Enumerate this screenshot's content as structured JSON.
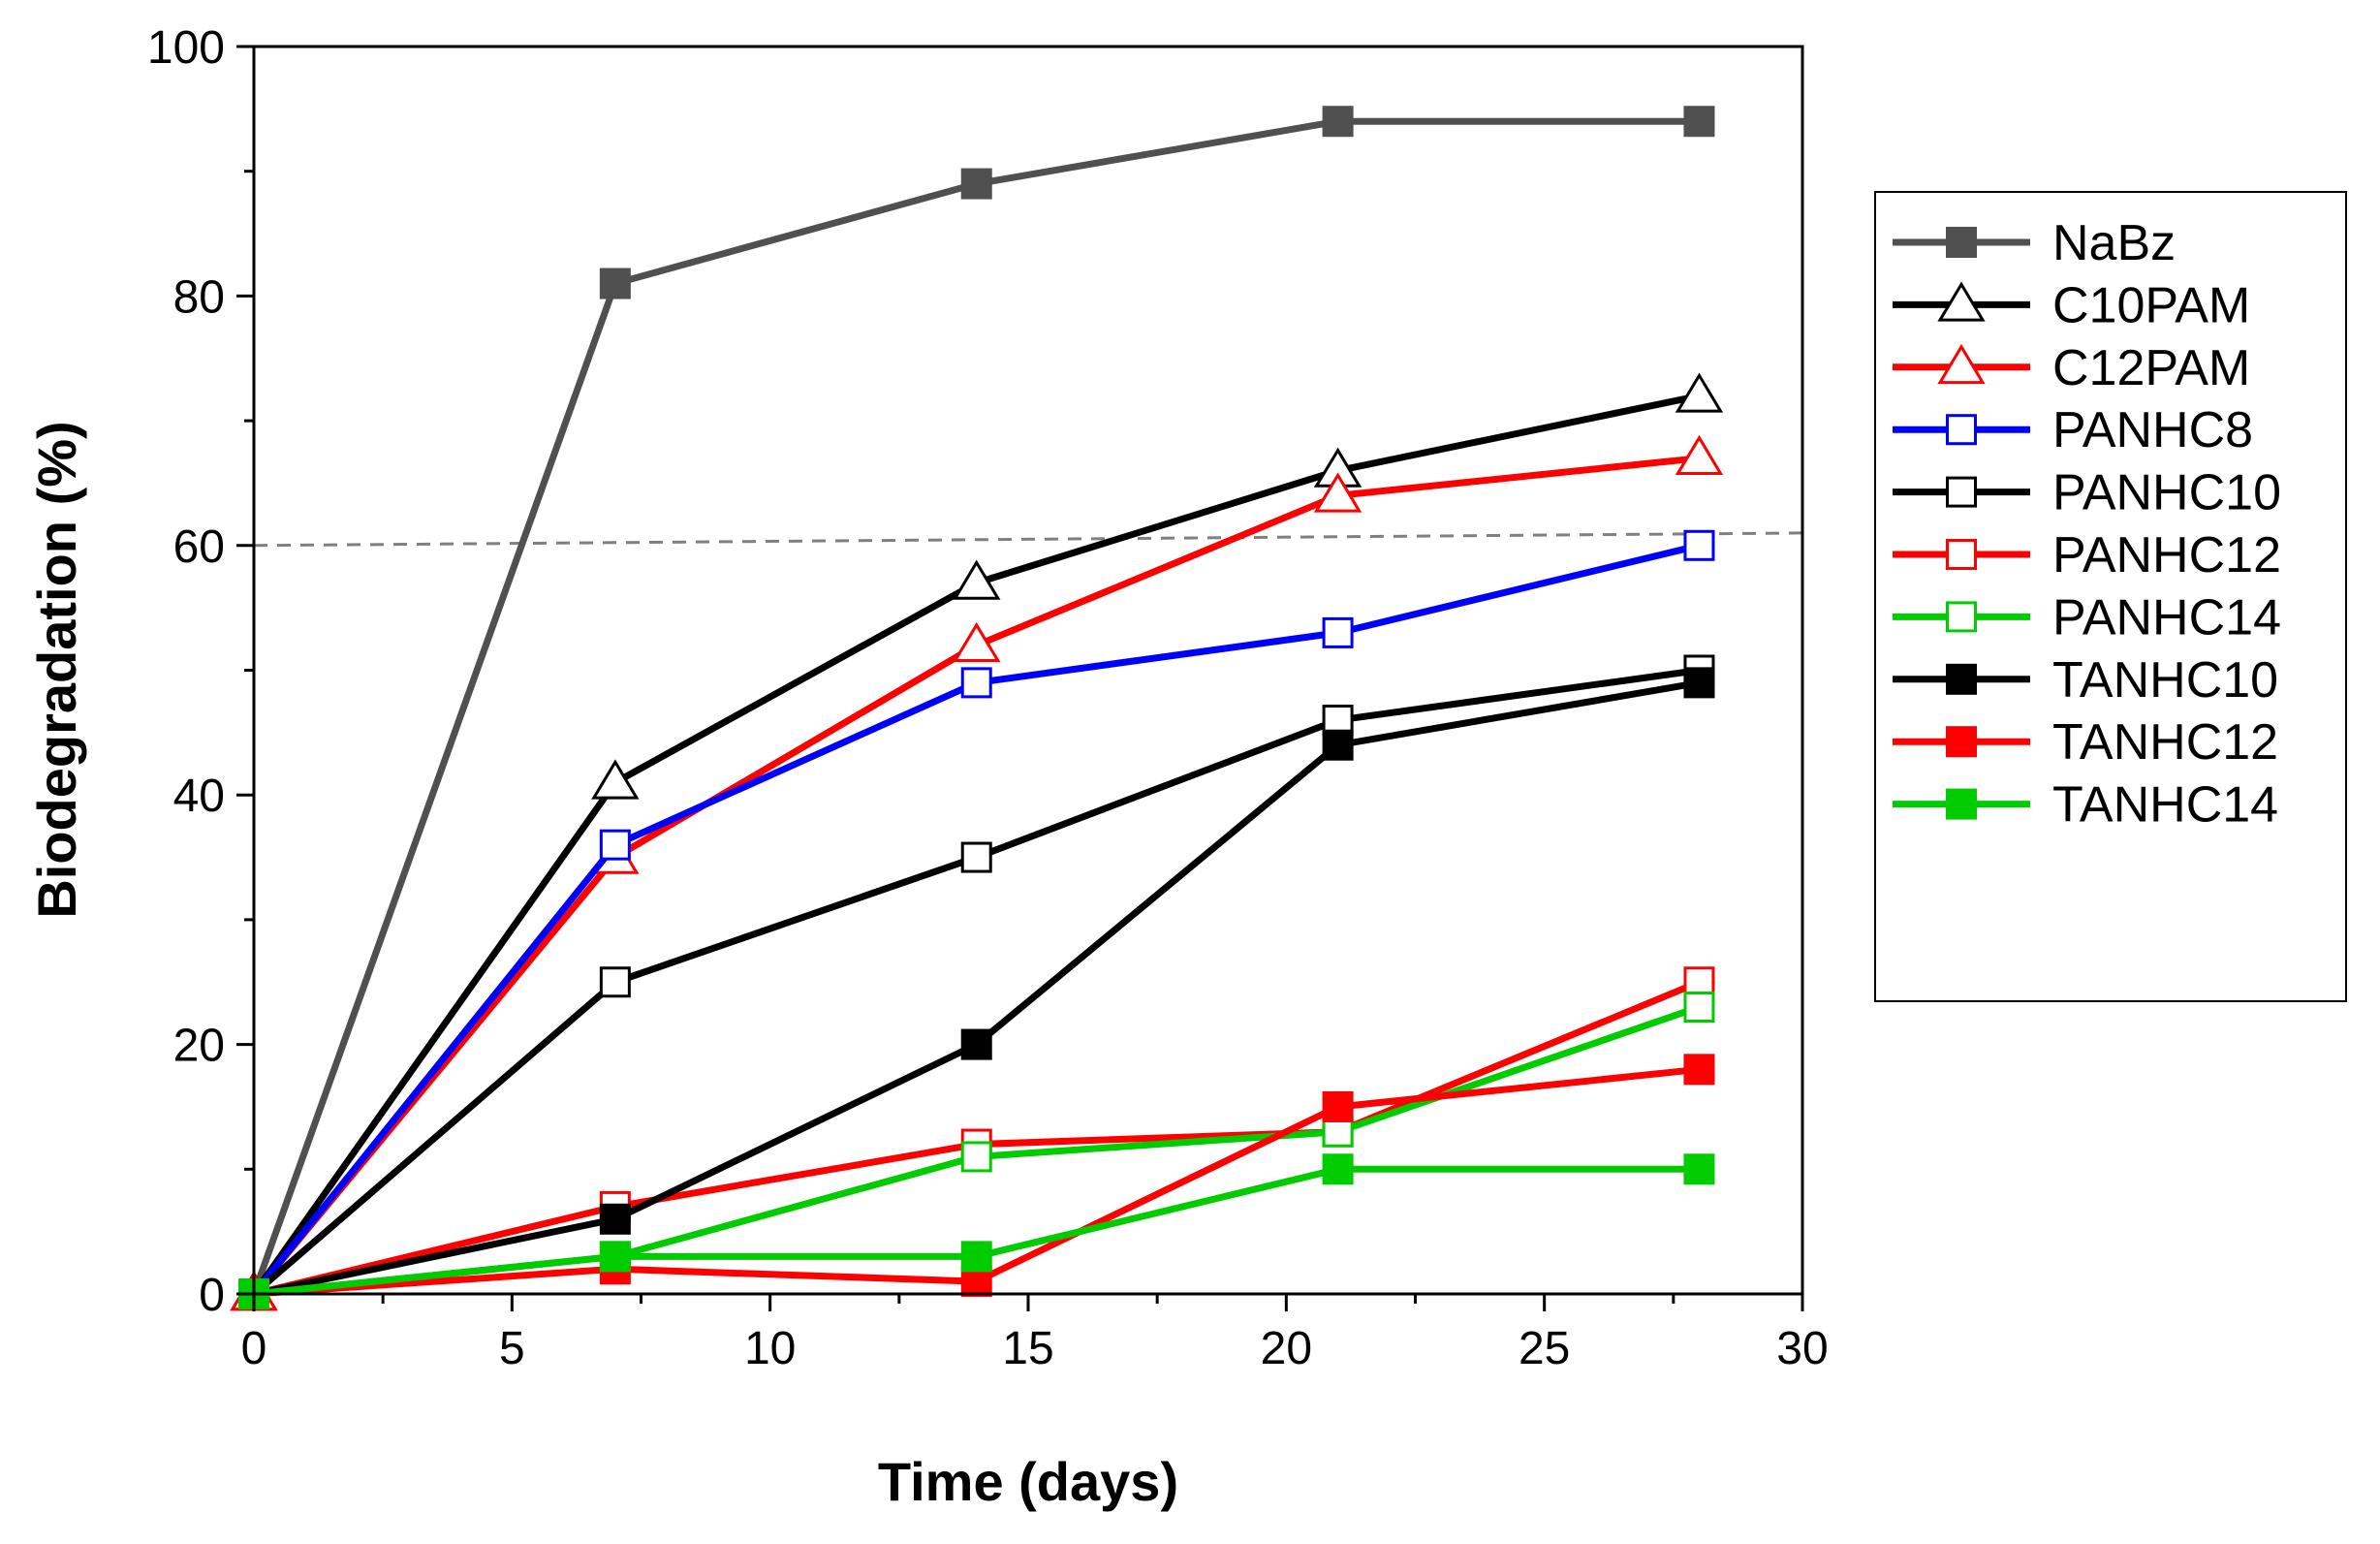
{
  "chart_data": {
    "type": "line",
    "xlabel": "Time (days)",
    "ylabel": "Biodegradation (%)",
    "xlim": [
      0,
      30
    ],
    "ylim": [
      0,
      100
    ],
    "xticks": [
      0,
      5,
      10,
      15,
      20,
      25,
      30
    ],
    "yticks": [
      0,
      20,
      40,
      60,
      80,
      100
    ],
    "grid": false,
    "legend_position": "right",
    "reference_line": {
      "from": [
        0,
        60
      ],
      "to": [
        30,
        61
      ],
      "style": "dashed",
      "color": "#808080"
    },
    "x": [
      0,
      7,
      14,
      21,
      28
    ],
    "series": [
      {
        "name": "NaBz",
        "color": "#505050",
        "marker": "square",
        "filled": true,
        "values": [
          0,
          81,
          89,
          94,
          94
        ]
      },
      {
        "name": "C10PAM",
        "color": "#000000",
        "marker": "triangle",
        "filled": false,
        "values": [
          0,
          41,
          57,
          66,
          72
        ]
      },
      {
        "name": "C12PAM",
        "color": "#ff0000",
        "marker": "triangle",
        "filled": false,
        "values": [
          0,
          35,
          52,
          64,
          67
        ]
      },
      {
        "name": "PANHC8",
        "color": "#0000ff",
        "marker": "square",
        "filled": false,
        "values": [
          0,
          36,
          49,
          53,
          60
        ]
      },
      {
        "name": "PANHC10",
        "color": "#000000",
        "marker": "square",
        "filled": false,
        "values": [
          0,
          25,
          35,
          46,
          50
        ]
      },
      {
        "name": "PANHC12",
        "color": "#ff0000",
        "marker": "square",
        "filled": false,
        "values": [
          0,
          7,
          12,
          13,
          25
        ]
      },
      {
        "name": "PANHC14",
        "color": "#00cc00",
        "marker": "square",
        "filled": false,
        "values": [
          0,
          3,
          11,
          13,
          23
        ]
      },
      {
        "name": "TANHC10",
        "color": "#000000",
        "marker": "square",
        "filled": true,
        "values": [
          0,
          6,
          20,
          44,
          49
        ]
      },
      {
        "name": "TANHC12",
        "color": "#ff0000",
        "marker": "square",
        "filled": true,
        "values": [
          0,
          2,
          1,
          15,
          18
        ]
      },
      {
        "name": "TANHC14",
        "color": "#00cc00",
        "marker": "square",
        "filled": true,
        "values": [
          0,
          3,
          3,
          10,
          10
        ]
      }
    ]
  }
}
